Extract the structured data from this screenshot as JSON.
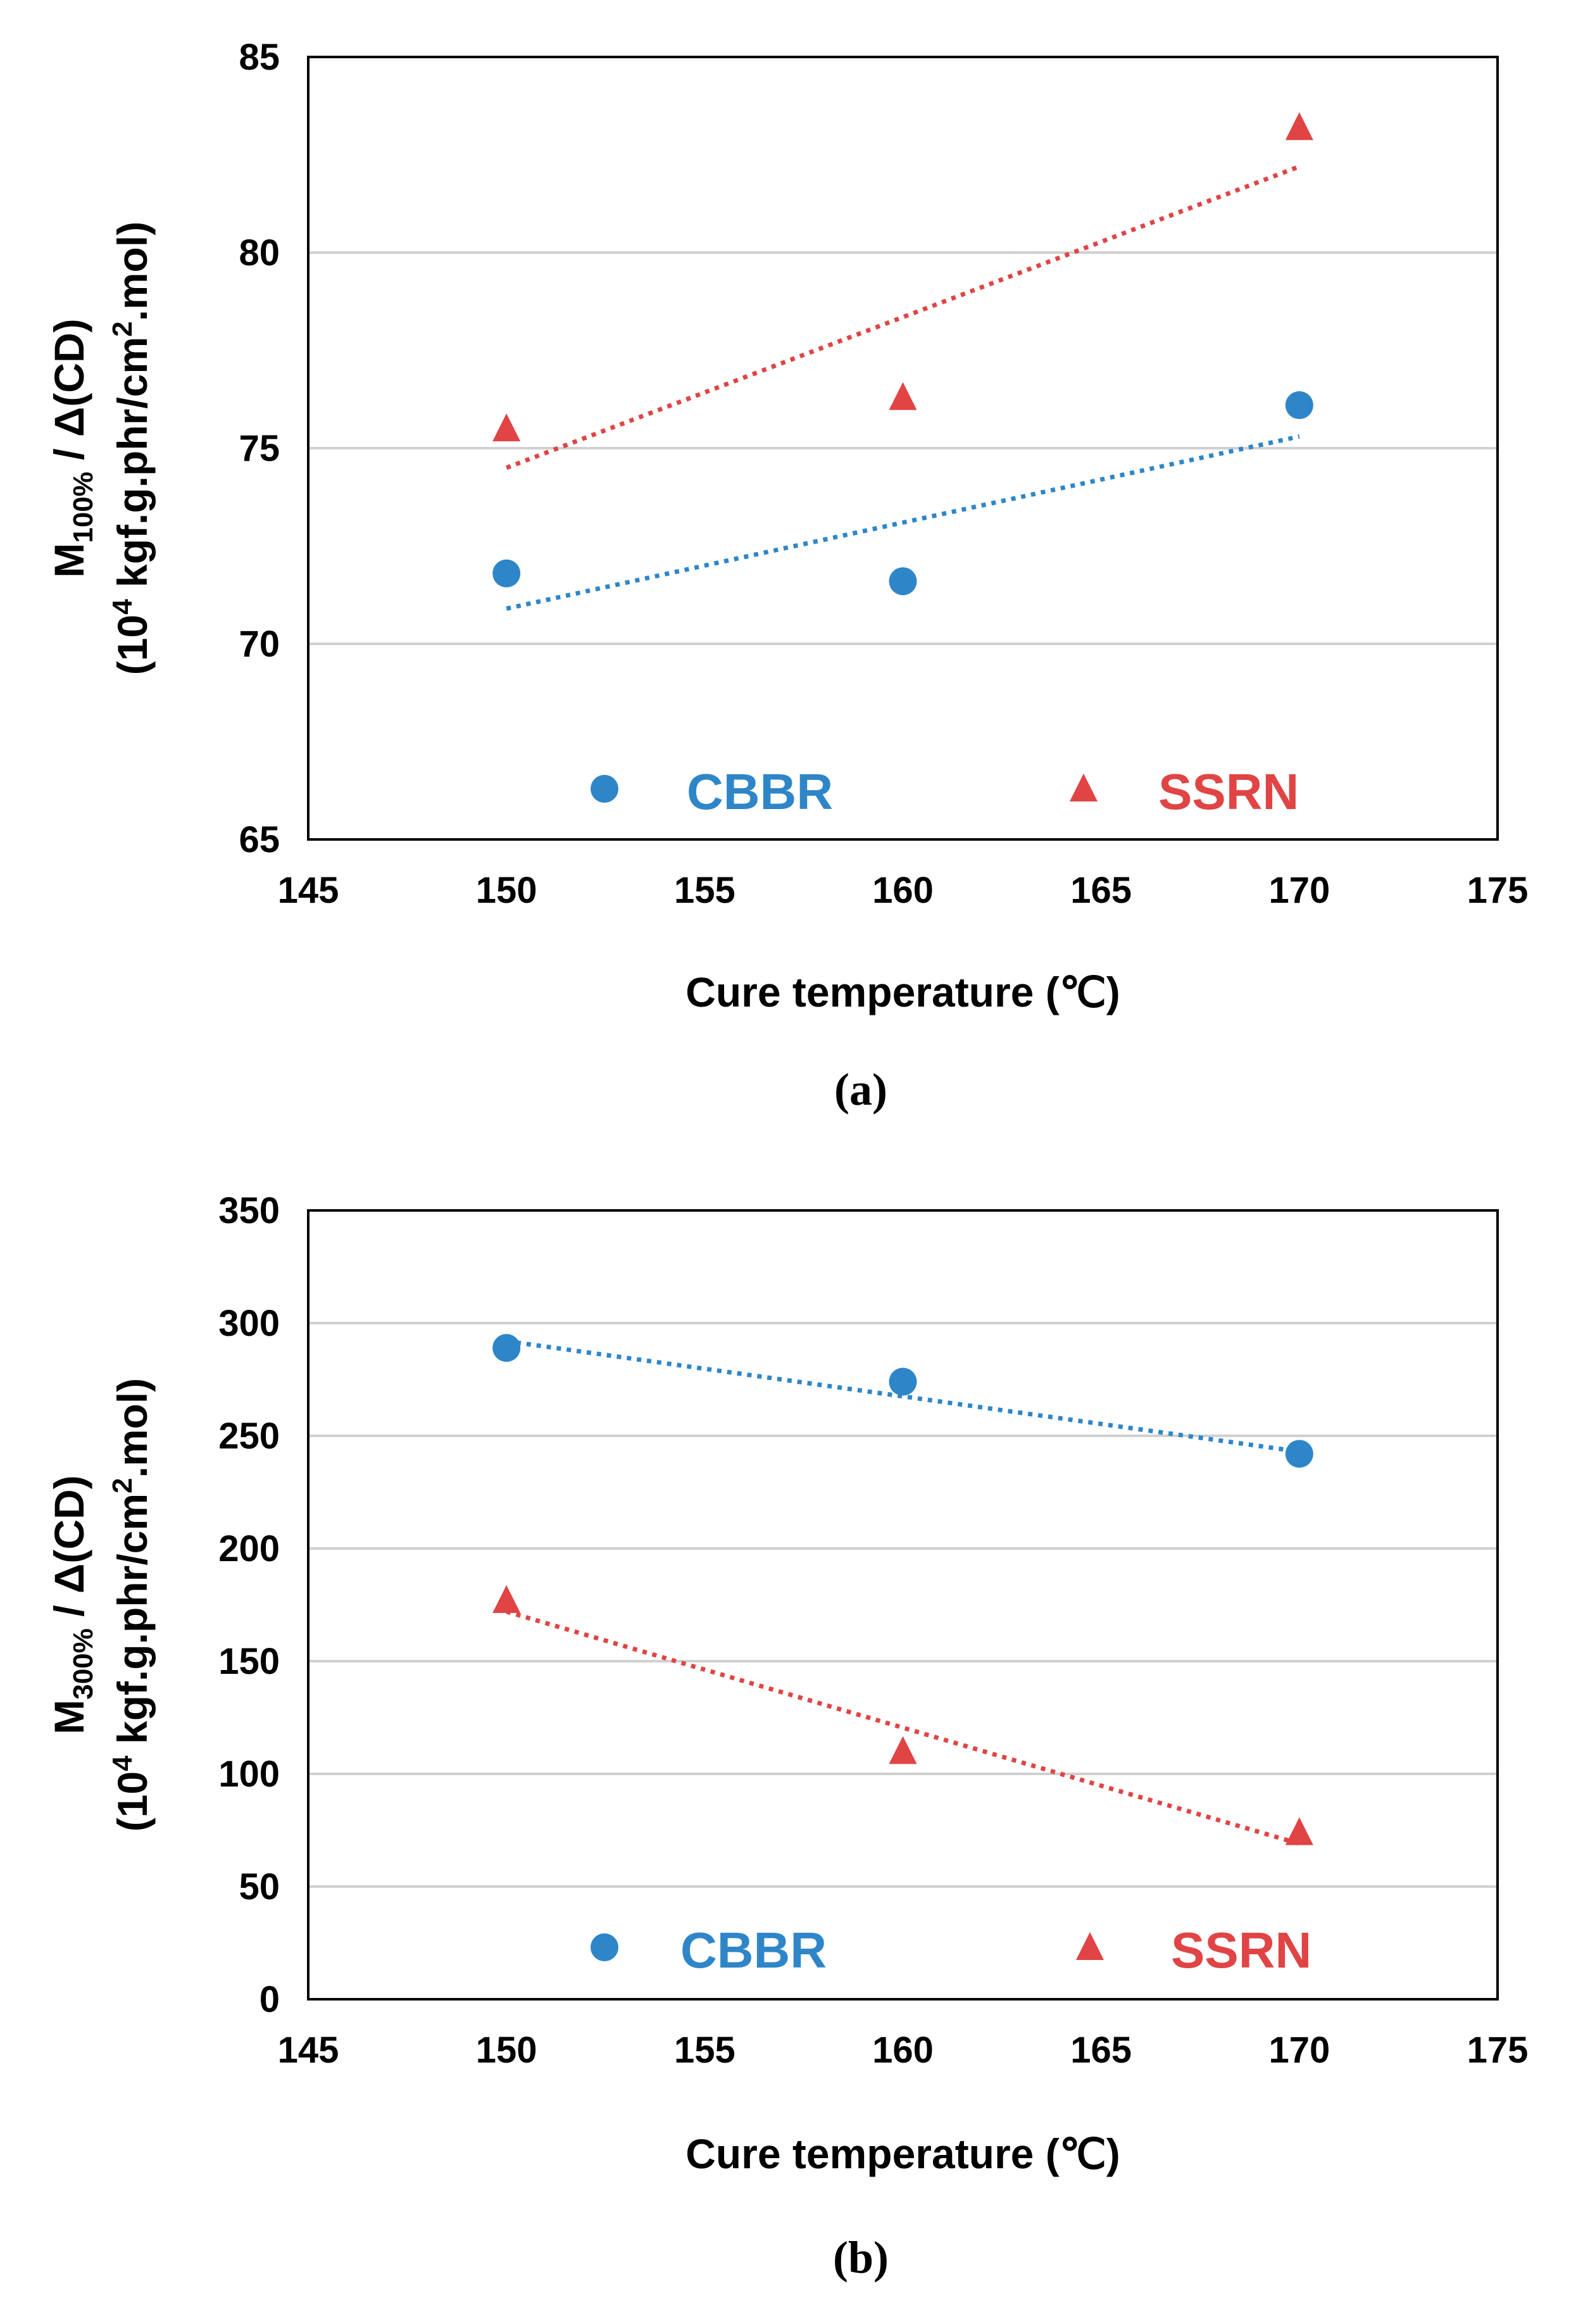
{
  "colors": {
    "cbbr": "#2e86c8",
    "ssrn": "#e04444",
    "grid": "#d0d0d0",
    "axis": "#000000"
  },
  "chart_data": [
    {
      "type": "scatter",
      "caption": "(a)",
      "xlabel": "Cure temperature (℃)",
      "ylabel_main": "M",
      "ylabel_sub": "100%",
      "ylabel_rest": " / Δ(CD)",
      "ylabel2_pre": "(10",
      "ylabel2_sup": "4",
      "ylabel2_mid": " kgf.g.phr/cm",
      "ylabel2_sup2": "2",
      "ylabel2_post": ".mol)",
      "xlim": [
        145,
        175
      ],
      "ylim": [
        65,
        85
      ],
      "xticks": [
        "145",
        "150",
        "155",
        "160",
        "165",
        "170",
        "175"
      ],
      "yticks": [
        "65",
        "70",
        "75",
        "80",
        "85"
      ],
      "grid": true,
      "legend": "inside-bottom",
      "series": [
        {
          "name": "CBBR",
          "marker": "circle",
          "x": [
            150,
            160,
            170
          ],
          "y": [
            71.8,
            71.6,
            76.1
          ],
          "trend": [
            [
              150,
              70.9
            ],
            [
              170,
              75.3
            ]
          ]
        },
        {
          "name": "SSRN",
          "marker": "triangle",
          "x": [
            150,
            160,
            170
          ],
          "y": [
            75.5,
            76.3,
            83.2
          ],
          "trend": [
            [
              150,
              74.5
            ],
            [
              170,
              82.2
            ]
          ]
        }
      ]
    },
    {
      "type": "scatter",
      "caption": "(b)",
      "xlabel": "Cure temperature (℃)",
      "ylabel_main": "M",
      "ylabel_sub": "300%",
      "ylabel_rest": " / Δ(CD)",
      "ylabel2_pre": "(10",
      "ylabel2_sup": "4",
      "ylabel2_mid": " kgf.g.phr/cm",
      "ylabel2_sup2": "2",
      "ylabel2_post": ".mol)",
      "xlim": [
        145,
        175
      ],
      "ylim": [
        0,
        350
      ],
      "xticks": [
        "145",
        "150",
        "155",
        "160",
        "165",
        "170",
        "175"
      ],
      "yticks": [
        "0",
        "50",
        "100",
        "150",
        "200",
        "250",
        "300",
        "350"
      ],
      "grid": true,
      "legend": "inside-bottom",
      "series": [
        {
          "name": "CBBR",
          "marker": "circle",
          "x": [
            150,
            160,
            170
          ],
          "y": [
            289,
            274,
            242
          ],
          "trend": [
            [
              150,
              292
            ],
            [
              170,
              243
            ]
          ]
        },
        {
          "name": "SSRN",
          "marker": "triangle",
          "x": [
            150,
            160,
            170
          ],
          "y": [
            177,
            110,
            74
          ],
          "trend": [
            [
              150,
              172
            ],
            [
              170,
              69
            ]
          ]
        }
      ]
    }
  ]
}
